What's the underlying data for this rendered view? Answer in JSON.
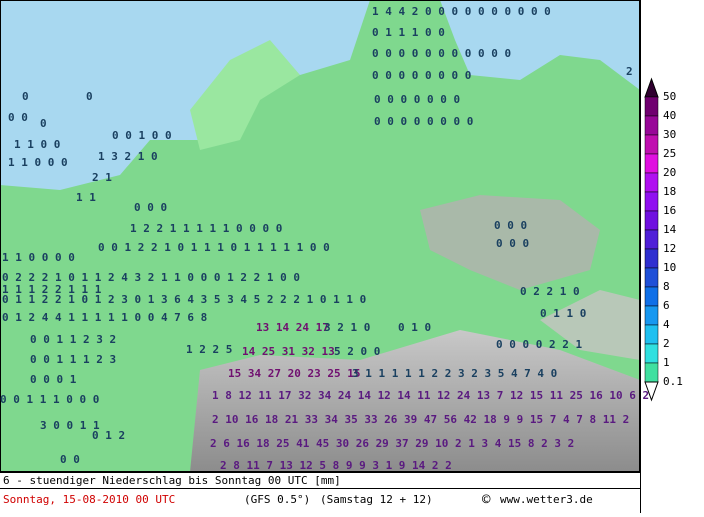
{
  "map": {
    "labels": [
      {
        "text": "1 4 4 2 0 0 0 0 0 0 0 0 0 0",
        "color": "#1a4060"
      },
      {
        "text": "0 1 1 1 0 0",
        "color": "#1a4060"
      },
      {
        "text": "0 0 0 0 0 0 0 0 0 0 0",
        "color": "#1a4060"
      },
      {
        "text": "0 0 0 0 0 0 0 0",
        "color": "#1a4060"
      },
      {
        "text": "2",
        "color": "#1a4060"
      },
      {
        "text": "0",
        "color": "#1a4060"
      },
      {
        "text": "0",
        "color": "#1a4060"
      },
      {
        "text": "0 0 0 0 0 0 0",
        "color": "#1a4060"
      },
      {
        "text": "0 0",
        "color": "#1a4060"
      },
      {
        "text": "0",
        "color": "#1a4060"
      },
      {
        "text": "0 0 0 0 0 0 0 0",
        "color": "#1a4060"
      },
      {
        "text": "0 0 1 0 0",
        "color": "#1a4060"
      },
      {
        "text": "1 1 0 0",
        "color": "#1a4060"
      },
      {
        "text": "1 3 2 1 0",
        "color": "#1a4060"
      },
      {
        "text": "1 1 0 0 0",
        "color": "#1a4060"
      },
      {
        "text": "2 1",
        "color": "#1a4060"
      },
      {
        "text": "1 1",
        "color": "#1a4060"
      },
      {
        "text": "0 0 0",
        "color": "#1a4060"
      },
      {
        "text": "1 2 2 1 1 1 1 1 0 0 0 0",
        "color": "#1a4060"
      },
      {
        "text": "0 0 0",
        "color": "#1a4060"
      },
      {
        "text": "0 0 1 2 2 1 0 1 1 1 0 1 1 1 1 1 0 0",
        "color": "#1a4060"
      },
      {
        "text": "1 1 0 0 0 0",
        "color": "#1a4060"
      },
      {
        "text": "0 0 0",
        "color": "#1a4060"
      },
      {
        "text": "0 2 2 2 1 0 1 1 2 4 3 2 1 1 0 0 0 1 2 2 1 0 0",
        "color": "#1a4060"
      },
      {
        "text": "1 1 1 2 2 1 1 1",
        "color": "#1a4060"
      },
      {
        "text": "0 2 2 1 0",
        "color": "#1a4060"
      },
      {
        "text": "0 1 1 2 2 1 0 1 2 3 0 1 3 6 4 3 5 3 4 5 2 2 2 1 0 1 1 0",
        "color": "#1a4060"
      },
      {
        "text": "0 1 2 4 4 1 1 1 1 1 0 0 4 7 6 8",
        "color": "#1a4060"
      },
      {
        "text": "13 14 24 17",
        "color": "#701070"
      },
      {
        "text": "3 2 1 0",
        "color": "#1a4060"
      },
      {
        "text": "0 1 0",
        "color": "#1a4060"
      },
      {
        "text": "0 1 1 0",
        "color": "#1a4060"
      },
      {
        "text": "0 0 1 1 2 3 2",
        "color": "#1a4060"
      },
      {
        "text": "1 2 2 5",
        "color": "#1a4060"
      },
      {
        "text": "14 25 31 32 13",
        "color": "#701070"
      },
      {
        "text": "5 2 0 0",
        "color": "#1a4060"
      },
      {
        "text": "0 0 0 0 2 2 1",
        "color": "#1a4060"
      },
      {
        "text": "0 0 1 1 1 2 3",
        "color": "#1a4060"
      },
      {
        "text": "15 34 27 20 23 25 15",
        "color": "#701070"
      },
      {
        "text": "3 1 1 1 1 1 2 2 3 2 3 5 4 7 4 0",
        "color": "#1a4060"
      },
      {
        "text": "0 0 0 1",
        "color": "#1a4060"
      },
      {
        "text": "1 8 12 11 17 32 34 24 14 12 14 11 12 24 13 7 12 15 11 25 16 10 6 2",
        "color": "#5a1a80"
      },
      {
        "text": "0 0 1 1 1 0 0 0",
        "color": "#1a4060"
      },
      {
        "text": "2 10 16 18 21 33 34 35 33 26 39 47 56 42 18 9 9 15 7 4 7 8 11 2",
        "color": "#5a1a80"
      },
      {
        "text": "3 0 0 1 1",
        "color": "#1a4060"
      },
      {
        "text": "0 1 2",
        "color": "#1a4060"
      },
      {
        "text": "2 6 16 18 25 41 45 30 26 29 37 29 10 2 1 3 4 15 8 2 3 2",
        "color": "#5a1a80"
      },
      {
        "text": "0 0",
        "color": "#1a4060"
      },
      {
        "text": "2 8 11 7 13 12 5 8 9 9 3 1 9 14 2 2",
        "color": "#5a1a80"
      }
    ],
    "legend": {
      "levels": [
        "50",
        "40",
        "30",
        "25",
        "20",
        "18",
        "16",
        "14",
        "12",
        "10",
        "8",
        "6",
        "4",
        "2",
        "1",
        "0.1"
      ],
      "colors": [
        "#300030",
        "#700070",
        "#980898",
        "#c010b0",
        "#e010e0",
        "#b010f0",
        "#9010f0",
        "#7010e0",
        "#5020d8",
        "#3030d0",
        "#2050d8",
        "#1070e8",
        "#1898f0",
        "#20c0f0",
        "#30e0e0",
        "#40e0a0"
      ]
    },
    "footer": {
      "title": "6 - stuendiger Niederschlag bis Sonntag 00 UTC [mm]",
      "date": "Sonntag, 15-08-2010  00 UTC",
      "model": "(GFS 0.5°)",
      "run": "(Samstag 12 + 12)",
      "copyright": "©",
      "site": "www.wetter3.de"
    }
  }
}
